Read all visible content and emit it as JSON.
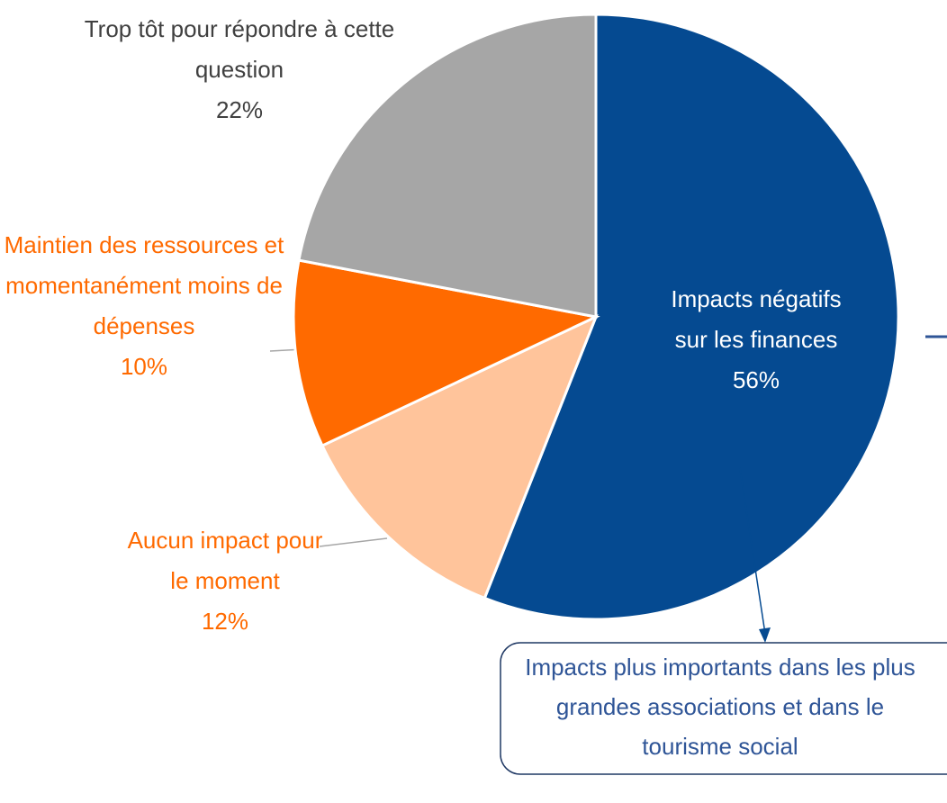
{
  "chart_data": {
    "type": "pie",
    "categories": [
      "Impacts négatifs sur les finances",
      "Aucun impact pour le moment",
      "Maintien des ressources et momentanément moins de dépenses",
      "Trop tôt pour répondre à cette question"
    ],
    "values": [
      56,
      12,
      10,
      22
    ],
    "value_labels": [
      "56%",
      "12%",
      "10%",
      "22%"
    ],
    "colors": [
      "#054a91",
      "#ffc49b",
      "#ff6a00",
      "#a6a6a6"
    ],
    "annotation": "Impacts plus importants dans les plus grandes associations et dans le tourisme social"
  }
}
